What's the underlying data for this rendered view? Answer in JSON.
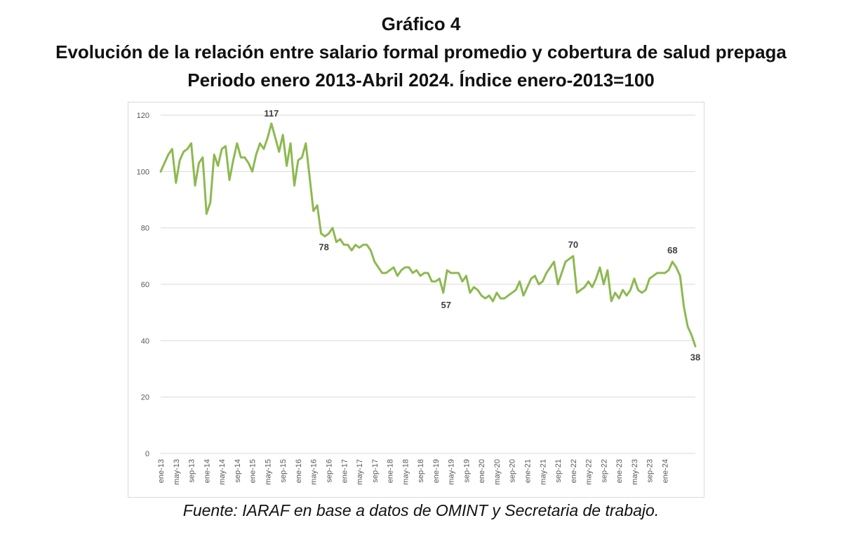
{
  "header": {
    "title": "Gráfico 4",
    "subtitle_line1": "Evolución de la relación entre salario formal promedio y cobertura de salud prepaga",
    "subtitle_line2": "Periodo enero 2013-Abril 2024. Índice enero-2013=100"
  },
  "footer": {
    "source": "Fuente: IARAF en base a datos de OMINT y Secretaria de trabajo."
  },
  "colors": {
    "line": "#8db950",
    "grid": "#d9d9d9",
    "tick": "#595959"
  },
  "chart_data": {
    "type": "line",
    "ylim": [
      0,
      120
    ],
    "yticks": [
      0,
      20,
      40,
      60,
      80,
      100,
      120
    ],
    "grid": true,
    "x_tick_labels": [
      "ene-13",
      "may-13",
      "sep-13",
      "ene-14",
      "may-14",
      "sep-14",
      "ene-15",
      "may-15",
      "sep-15",
      "ene-16",
      "may-16",
      "sep-16",
      "ene-17",
      "may-17",
      "sep-17",
      "ene-18",
      "may-18",
      "sep-18",
      "ene-19",
      "may-19",
      "sep-19",
      "ene-20",
      "may-20",
      "sep-20",
      "ene-21",
      "may-21",
      "sep-21",
      "ene-22",
      "may-22",
      "sep-22",
      "ene-23",
      "may-23",
      "sep-23",
      "ene-24"
    ],
    "series": [
      {
        "values": [
          100,
          103,
          106,
          108,
          96,
          104,
          107,
          108,
          110,
          95,
          103,
          105,
          85,
          89,
          106,
          102,
          108,
          109,
          97,
          104,
          110,
          105,
          105,
          103,
          100,
          106,
          110,
          108,
          112,
          117,
          112,
          107,
          113,
          102,
          110,
          95,
          104,
          105,
          110,
          98,
          86,
          88,
          78,
          77,
          78,
          80,
          75,
          76,
          74,
          74,
          72,
          74,
          73,
          74,
          74,
          72,
          68,
          66,
          64,
          64,
          65,
          66,
          63,
          65,
          66,
          66,
          64,
          65,
          63,
          64,
          64,
          61,
          61,
          62,
          57,
          65,
          64,
          64,
          64,
          61,
          63,
          57,
          59,
          58,
          56,
          55,
          56,
          54,
          57,
          55,
          55,
          56,
          57,
          58,
          61,
          56,
          59,
          62,
          63,
          60,
          61,
          64,
          66,
          68,
          60,
          64,
          68,
          69,
          70,
          57,
          58,
          59,
          61,
          59,
          62,
          66,
          60,
          65,
          54,
          57,
          55,
          58,
          56,
          58,
          62,
          58,
          57,
          58,
          62,
          63,
          64,
          64,
          64,
          65,
          68,
          66,
          63,
          52,
          45,
          42,
          38
        ],
        "annotations": [
          {
            "index": 29,
            "label": "117"
          },
          {
            "index": 42,
            "label": "78"
          },
          {
            "index": 74,
            "label": "57"
          },
          {
            "index": 108,
            "label": "70"
          },
          {
            "index": 134,
            "label": "68"
          },
          {
            "index": 140,
            "label": "38"
          }
        ]
      }
    ]
  }
}
